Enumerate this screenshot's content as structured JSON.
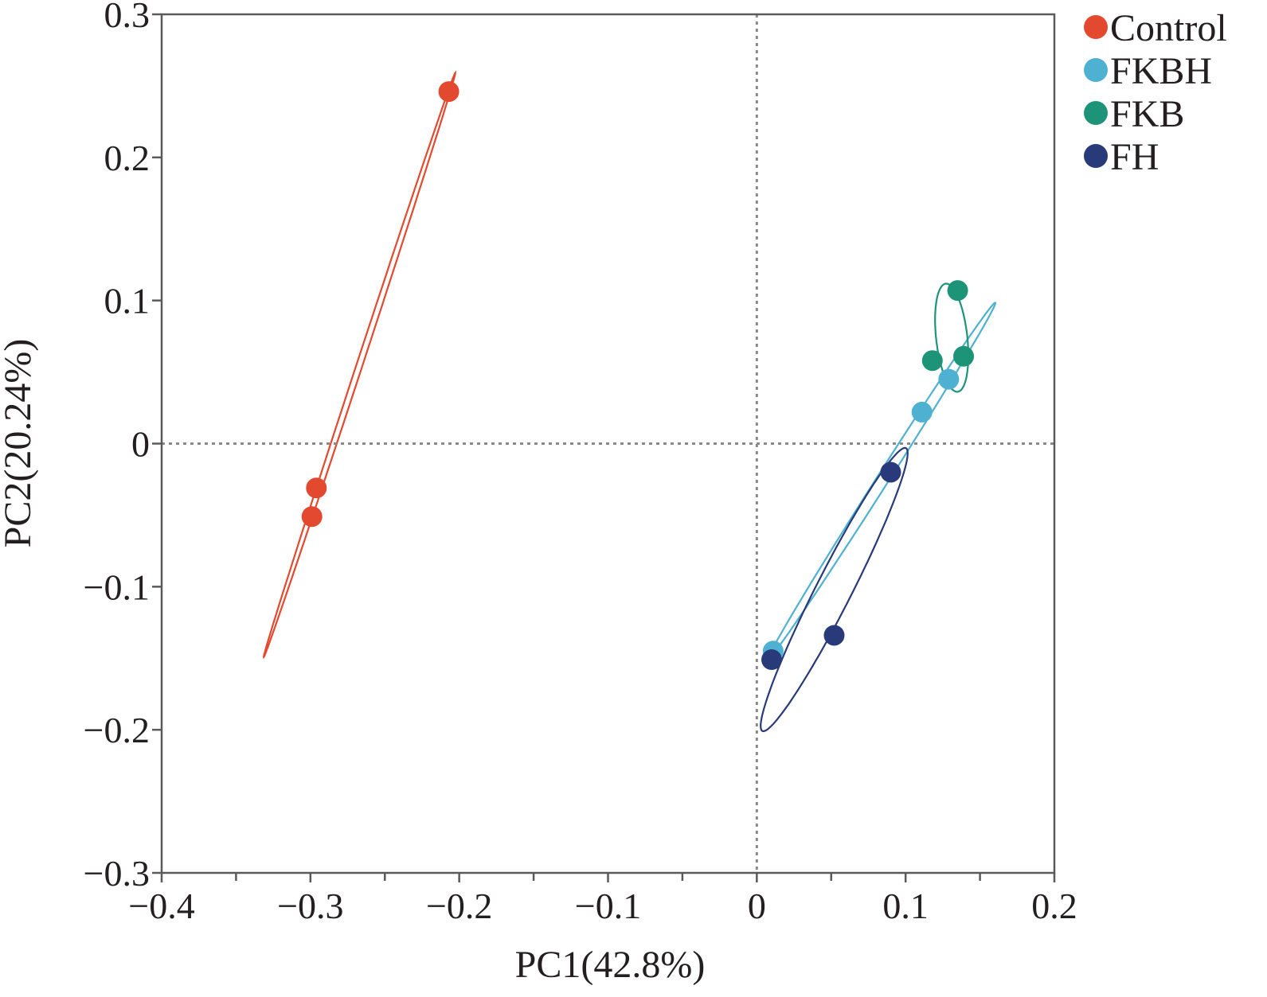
{
  "chart_data": {
    "type": "scatter",
    "title": "",
    "xlabel": "PC1(42.8%)",
    "ylabel": "PC2(20.24%)",
    "xlim": [
      -0.4,
      0.2
    ],
    "ylim": [
      -0.3,
      0.3
    ],
    "x_ticks": [
      {
        "value": -0.4,
        "label": "−0.4"
      },
      {
        "value": -0.3,
        "label": "−0.3"
      },
      {
        "value": -0.2,
        "label": "−0.2"
      },
      {
        "value": -0.1,
        "label": "−0.1"
      },
      {
        "value": 0,
        "label": "0"
      },
      {
        "value": 0.1,
        "label": "0.1"
      },
      {
        "value": 0.2,
        "label": "0.2"
      }
    ],
    "y_ticks": [
      {
        "value": 0.3,
        "label": "0.3"
      },
      {
        "value": 0.2,
        "label": "0.2"
      },
      {
        "value": 0.1,
        "label": "0.1"
      },
      {
        "value": 0,
        "label": "0"
      },
      {
        "value": -0.1,
        "label": "−0.1"
      },
      {
        "value": -0.2,
        "label": "−0.2"
      },
      {
        "value": -0.3,
        "label": "−0.3"
      }
    ],
    "grid": false,
    "reference_lines": "dotted lines at x = 0 and y = 0",
    "legend_position": "top-right, outside plot",
    "series": [
      {
        "name": "Control",
        "color": "#e2492f",
        "points": [
          [
            -0.207,
            0.246
          ],
          [
            -0.296,
            -0.031
          ],
          [
            -0.299,
            -0.051
          ]
        ],
        "ellipse": {
          "center": [
            -0.267,
            0.055
          ],
          "semi_major": 0.214,
          "semi_minor": 0.002,
          "angle_deg": 72.5
        }
      },
      {
        "name": "FKBH",
        "color": "#4eb1d1",
        "points": [
          [
            0.129,
            0.045
          ],
          [
            0.111,
            0.022
          ],
          [
            0.011,
            -0.145
          ]
        ],
        "ellipse": {
          "center": [
            0.084,
            -0.026
          ],
          "semi_major": 0.146,
          "semi_minor": 0.004,
          "angle_deg": 58.5
        }
      },
      {
        "name": "FKB",
        "color": "#1d9478",
        "points": [
          [
            0.135,
            0.107
          ],
          [
            0.118,
            0.058
          ],
          [
            0.139,
            0.061
          ]
        ],
        "ellipse": {
          "center": [
            0.131,
            0.074
          ],
          "semi_major": 0.038,
          "semi_minor": 0.0105,
          "angle_deg": 96
        }
      },
      {
        "name": "FH",
        "color": "#283a79",
        "points": [
          [
            0.09,
            -0.02
          ],
          [
            0.052,
            -0.134
          ],
          [
            0.01,
            -0.151
          ]
        ],
        "ellipse": {
          "center": [
            0.052,
            -0.102
          ],
          "semi_major": 0.11,
          "semi_minor": 0.012,
          "angle_deg": 64
        }
      }
    ]
  }
}
